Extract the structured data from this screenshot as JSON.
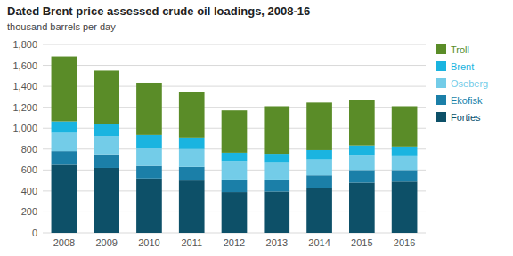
{
  "chart_data": {
    "type": "bar",
    "title": "Dated Brent price assessed crude oil loadings, 2008-16",
    "subtitle": "thousand barrels per day",
    "categories": [
      "2008",
      "2009",
      "2010",
      "2011",
      "2012",
      "2013",
      "2014",
      "2015",
      "2016"
    ],
    "series": [
      {
        "name": "Forties",
        "color": "#0d5068",
        "values": [
          650,
          620,
          520,
          500,
          390,
          395,
          430,
          480,
          490
        ]
      },
      {
        "name": "Ekofisk",
        "color": "#1b7fa8",
        "values": [
          130,
          130,
          120,
          130,
          120,
          115,
          120,
          120,
          110
        ]
      },
      {
        "name": "Oseberg",
        "color": "#73cce8",
        "values": [
          175,
          175,
          175,
          170,
          175,
          165,
          150,
          145,
          140
        ]
      },
      {
        "name": "Brent",
        "color": "#1ab4e0",
        "values": [
          110,
          115,
          120,
          110,
          80,
          80,
          90,
          90,
          85
        ]
      },
      {
        "name": "Troll",
        "color": "#5a8c28",
        "values": [
          620,
          510,
          500,
          440,
          405,
          455,
          455,
          435,
          385
        ]
      }
    ],
    "ylim": [
      0,
      1800
    ],
    "yticks": [
      0,
      200,
      400,
      600,
      800,
      {
        "value": 1000,
        "label": "1,000"
      },
      {
        "value": 1200,
        "label": "1,200"
      },
      {
        "value": 1400,
        "label": "1,400"
      },
      {
        "value": 1600,
        "label": "1,600"
      },
      {
        "value": 1800,
        "label": "1,800"
      }
    ],
    "stacked": true,
    "grid": true,
    "legend": "right"
  }
}
